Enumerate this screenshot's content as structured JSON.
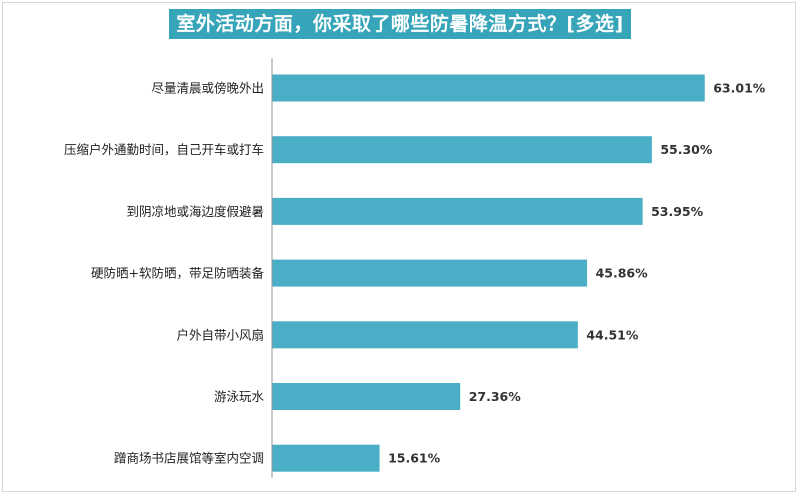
{
  "chart_data": {
    "type": "bar",
    "orientation": "horizontal",
    "title": "室外活动方面，你采取了哪些防暑降温方式？[多选]",
    "categories": [
      "尽量清晨或傍晚外出",
      "压缩户外通勤时间，自己开车或打车",
      "到阴凉地或海边度假避暑",
      "硬防晒+软防晒，带足防晒装备",
      "户外自带小风扇",
      "游泳玩水",
      "蹭商场书店展馆等室内空调"
    ],
    "values": [
      63.01,
      55.3,
      53.95,
      45.86,
      44.51,
      27.36,
      15.61
    ],
    "value_labels": [
      "63.01%",
      "55.30%",
      "53.95%",
      "45.86%",
      "44.51%",
      "27.36%",
      "15.61%"
    ],
    "xlim": [
      0,
      70
    ],
    "grid": false,
    "legend": "none",
    "colors": {
      "bar": "#4aaec6",
      "title_bg": "#36a4b9",
      "axis": "#9a9a9a"
    }
  }
}
